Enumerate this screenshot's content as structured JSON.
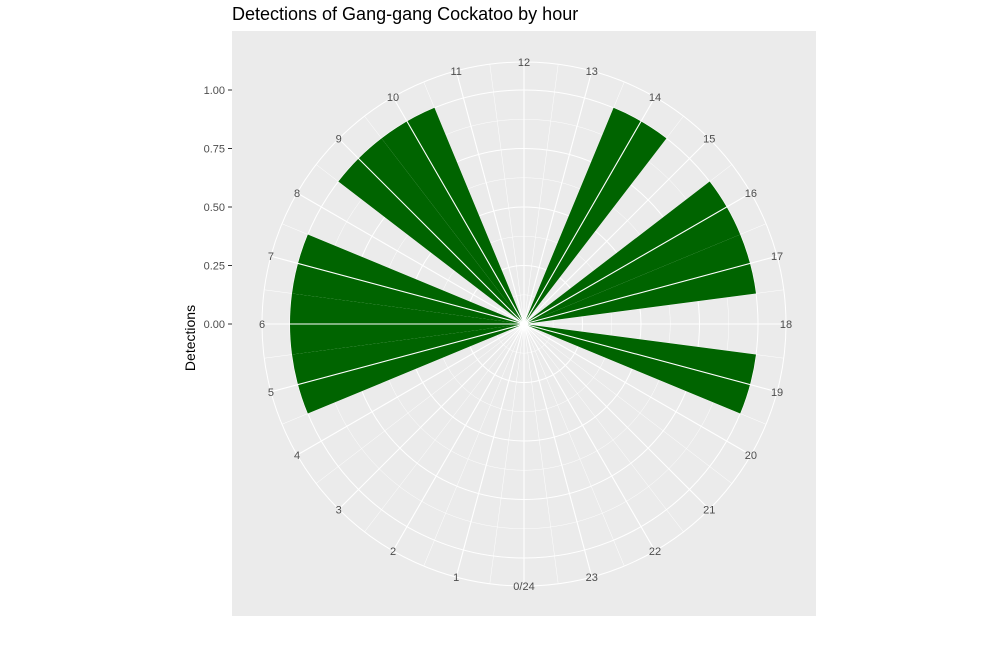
{
  "chart_data": {
    "type": "bar",
    "coord": "polar",
    "title": "Detections of Gang-gang Cockatoo by hour",
    "xlabel": "",
    "ylabel": "Detections",
    "ylim": [
      0,
      1.0
    ],
    "y_ticks": [
      0.0,
      0.25,
      0.5,
      0.75,
      1.0
    ],
    "y_tick_labels": [
      "0.00",
      "0.25",
      "0.50",
      "0.75",
      "1.00"
    ],
    "x_tick_labels": [
      "0/24",
      "1",
      "2",
      "3",
      "4",
      "5",
      "6",
      "7",
      "8",
      "9",
      "10",
      "11",
      "12",
      "13",
      "14",
      "15",
      "16",
      "17",
      "18",
      "19",
      "20",
      "21",
      "22",
      "23"
    ],
    "categories": [
      5,
      6,
      7,
      9,
      10,
      14,
      16,
      17,
      19
    ],
    "values": [
      1,
      1,
      1,
      1,
      1,
      1,
      1,
      1,
      1
    ],
    "bar_color": "#006400",
    "panel_background": "#ebebeb",
    "grid_color": "#ffffff",
    "grid": true
  }
}
